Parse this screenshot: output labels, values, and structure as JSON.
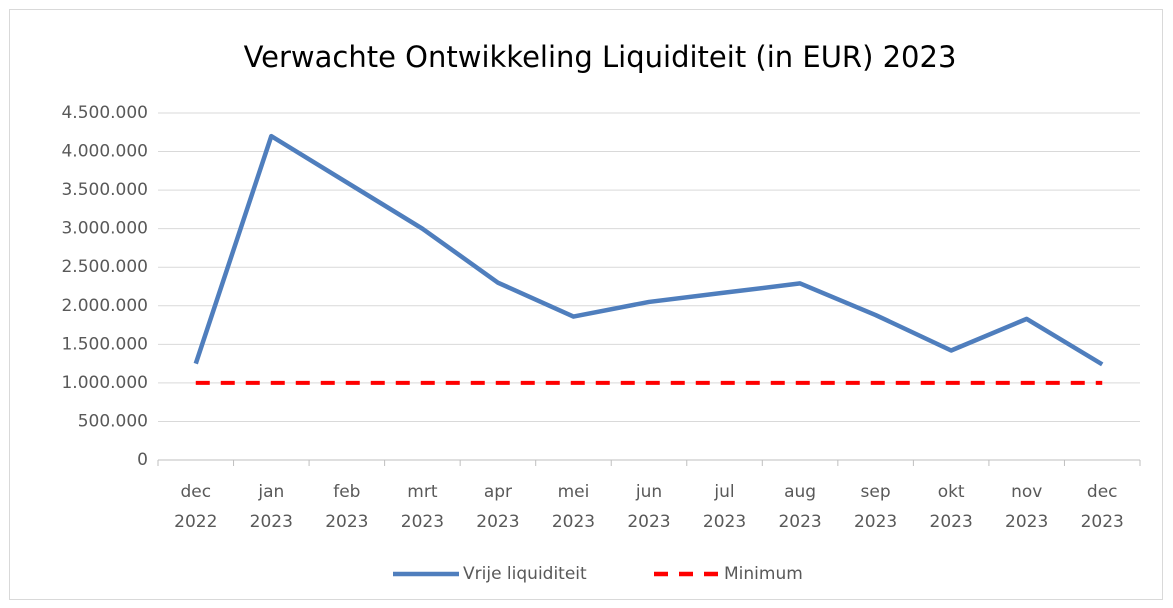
{
  "chart_data": {
    "type": "line",
    "title": "Verwachte Ontwikkeling Liquiditeit (in EUR) 2023",
    "categories": [
      "dec 2022",
      "jan 2023",
      "feb 2023",
      "mrt 2023",
      "apr 2023",
      "mei 2023",
      "jun 2023",
      "jul 2023",
      "aug 2023",
      "sep 2023",
      "okt 2023",
      "nov 2023",
      "dec 2023"
    ],
    "series": [
      {
        "name": "Vrije liquiditeit",
        "color": "#4f7ebd",
        "dash": false,
        "values": [
          1250000,
          4200000,
          3600000,
          3000000,
          2300000,
          1860000,
          2050000,
          2170000,
          2290000,
          1880000,
          1420000,
          1830000,
          1240000
        ]
      },
      {
        "name": "Minimum",
        "color": "#ff0000",
        "dash": true,
        "values": [
          1000000,
          1000000,
          1000000,
          1000000,
          1000000,
          1000000,
          1000000,
          1000000,
          1000000,
          1000000,
          1000000,
          1000000,
          1000000
        ]
      }
    ],
    "ylim": [
      0,
      4500000
    ],
    "yticks": [
      0,
      {
        "value": 500000,
        "label": "500.000"
      },
      {
        "value": 1000000,
        "label": "1.000.000"
      },
      {
        "value": 1500000,
        "label": "1.500.000"
      },
      {
        "value": 2000000,
        "label": "2.000.000"
      },
      {
        "value": 2500000,
        "label": "2.500.000"
      },
      {
        "value": 3000000,
        "label": "3.000.000"
      },
      {
        "value": 3500000,
        "label": "3.500.000"
      },
      {
        "value": 4000000,
        "label": "4.000.000"
      },
      {
        "value": 4500000,
        "label": "4.500.000"
      }
    ],
    "grid": true,
    "legend": "bottom"
  }
}
